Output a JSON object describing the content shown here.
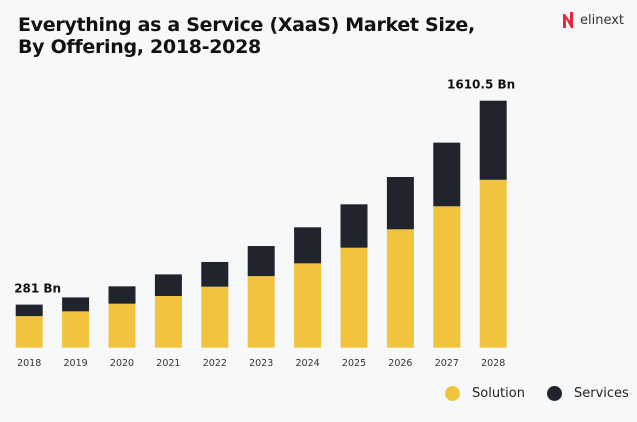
{
  "brand": "elinext",
  "chart_data": {
    "type": "bar",
    "stacked": true,
    "title": "Everything as a Service (XaaS) Market Size, By Offering, 2018-2028",
    "categories": [
      "2018",
      "2019",
      "2020",
      "2021",
      "2022",
      "2023",
      "2024",
      "2025",
      "2026",
      "2027",
      "2028"
    ],
    "series": [
      {
        "name": "Solution",
        "color": "#f2c43d",
        "values": [
          206,
          237,
          287,
          337,
          398,
          467,
          550,
          652,
          772,
          922,
          1095
        ]
      },
      {
        "name": "Services",
        "color": "#20242c",
        "values": [
          75,
          91,
          113,
          141,
          161,
          196,
          235,
          283,
          341,
          415,
          515.5
        ]
      }
    ],
    "annotations": [
      {
        "category": "2018",
        "text": "281 Bn"
      },
      {
        "category": "2028",
        "text": "1610.5 Bn"
      }
    ],
    "ylim": [
      0,
      1610.5
    ],
    "grid": false,
    "legend": "bottom-right"
  }
}
